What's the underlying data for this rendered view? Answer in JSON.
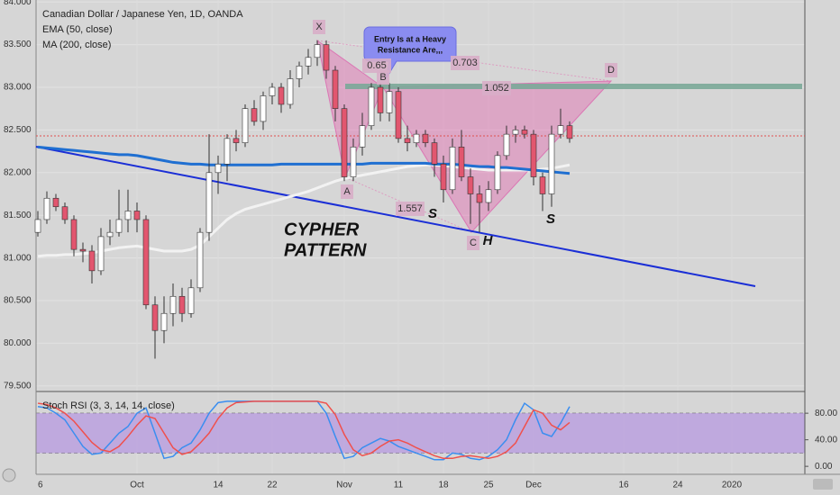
{
  "chart_data": [
    {
      "type": "candlestick",
      "title": "Canadian Dollar / Japanese Yen, 1D, OANDA",
      "categories": [
        "6",
        null,
        null,
        null,
        null,
        null,
        null,
        null,
        null,
        null,
        null,
        "Oct",
        null,
        null,
        null,
        null,
        null,
        null,
        null,
        null,
        "14",
        null,
        null,
        null,
        null,
        null,
        "22",
        null,
        null,
        null,
        null,
        null,
        null,
        null,
        "Nov",
        null,
        null,
        null,
        null,
        null,
        "11",
        null,
        null,
        null,
        null,
        "18",
        null,
        null,
        null,
        null,
        "25",
        null,
        null,
        null,
        null,
        "Dec",
        null,
        null,
        null,
        null,
        null,
        null,
        null,
        null,
        null,
        "16",
        null,
        null,
        null,
        null,
        null,
        "24",
        null,
        null,
        null,
        null,
        null,
        "2020"
      ],
      "open": [
        81.3,
        81.45,
        81.7,
        81.6,
        81.45,
        81.1,
        81.08,
        80.85,
        81.25,
        81.3,
        81.45,
        81.55,
        81.45,
        80.45,
        80.15,
        80.35,
        80.55,
        80.35,
        80.65,
        81.3,
        82.0,
        82.1,
        82.4,
        82.35,
        82.75,
        82.6,
        82.9,
        83.0,
        82.8,
        83.1,
        83.25,
        83.35,
        83.5,
        83.2,
        82.75,
        81.95,
        82.3,
        82.55,
        83.0,
        82.7,
        82.95,
        82.4,
        82.35,
        82.45,
        82.35,
        82.1,
        81.8,
        82.3,
        81.95,
        81.75,
        81.65,
        81.8,
        82.2,
        82.45,
        82.5,
        82.45,
        81.95,
        81.75,
        82.45,
        82.55,
        null,
        null,
        null,
        null,
        null,
        null,
        null,
        null,
        null,
        null,
        null,
        null,
        null,
        null,
        null,
        null,
        null,
        null
      ],
      "high": [
        81.55,
        81.78,
        81.75,
        81.65,
        81.5,
        81.18,
        81.15,
        81.35,
        81.45,
        81.8,
        81.8,
        81.65,
        81.5,
        80.55,
        80.55,
        80.7,
        80.65,
        80.75,
        81.35,
        82.45,
        82.2,
        82.45,
        82.5,
        82.8,
        82.85,
        82.95,
        83.05,
        83.05,
        83.2,
        83.3,
        83.45,
        83.55,
        83.55,
        83.25,
        82.8,
        82.4,
        82.7,
        83.05,
        83.05,
        83.05,
        83.0,
        82.55,
        82.5,
        82.5,
        82.4,
        82.2,
        82.4,
        82.5,
        82.05,
        81.85,
        81.9,
        82.25,
        82.55,
        82.55,
        82.55,
        82.5,
        82.0,
        82.55,
        82.75,
        82.6,
        null,
        null,
        null,
        null,
        null,
        null,
        null,
        null,
        null,
        null,
        null,
        null,
        null,
        null,
        null,
        null,
        null,
        null
      ],
      "low": [
        81.25,
        81.4,
        81.55,
        81.4,
        81.02,
        80.95,
        80.7,
        80.8,
        81.15,
        81.25,
        81.3,
        81.3,
        80.4,
        79.82,
        80.0,
        80.2,
        80.25,
        80.3,
        80.6,
        81.2,
        81.75,
        81.9,
        82.25,
        82.3,
        82.55,
        82.5,
        82.8,
        82.7,
        82.75,
        83.0,
        83.15,
        83.25,
        83.1,
        82.6,
        81.9,
        81.9,
        82.2,
        82.5,
        82.6,
        82.6,
        82.35,
        82.25,
        82.3,
        82.3,
        81.95,
        81.65,
        81.75,
        81.9,
        81.4,
        81.3,
        81.55,
        81.75,
        82.15,
        82.35,
        82.4,
        81.85,
        81.55,
        81.6,
        82.4,
        82.35,
        null,
        null,
        null,
        null,
        null,
        null,
        null,
        null,
        null,
        null,
        null,
        null,
        null,
        null,
        null,
        null,
        null,
        null
      ],
      "close": [
        81.45,
        81.7,
        81.6,
        81.45,
        81.1,
        81.08,
        80.85,
        81.25,
        81.3,
        81.45,
        81.55,
        81.45,
        80.45,
        80.15,
        80.35,
        80.55,
        80.35,
        80.65,
        81.3,
        82.0,
        82.1,
        82.4,
        82.35,
        82.75,
        82.6,
        82.9,
        83.0,
        82.8,
        83.1,
        83.25,
        83.35,
        83.5,
        83.2,
        82.75,
        81.95,
        82.3,
        82.55,
        83.0,
        82.7,
        82.95,
        82.4,
        82.35,
        82.45,
        82.35,
        82.1,
        81.8,
        82.3,
        81.95,
        81.75,
        81.65,
        81.8,
        82.2,
        82.45,
        82.5,
        82.45,
        81.95,
        81.75,
        82.45,
        82.55,
        82.4,
        null,
        null,
        null,
        null,
        null,
        null,
        null,
        null,
        null,
        null,
        null,
        null,
        null,
        null,
        null,
        null,
        null,
        null
      ],
      "up_color": "#ffffff",
      "down_color": "#e2566f",
      "series": [
        {
          "name": "EMA (50, close)",
          "color": "#f2f2f2",
          "values": [
            81.02,
            81.03,
            81.03,
            81.04,
            81.04,
            81.05,
            81.06,
            81.08,
            81.1,
            81.12,
            81.13,
            81.14,
            81.12,
            81.1,
            81.08,
            81.08,
            81.08,
            81.1,
            81.15,
            81.25,
            81.35,
            81.45,
            81.52,
            81.57,
            81.6,
            81.63,
            81.66,
            81.69,
            81.72,
            81.75,
            81.78,
            81.82,
            81.86,
            81.9,
            81.93,
            81.95,
            81.97,
            81.99,
            82.01,
            82.03,
            82.05,
            82.07,
            82.08,
            82.09,
            82.09,
            82.08,
            82.07,
            82.06,
            82.05,
            82.04,
            82.03,
            82.03,
            82.03,
            82.03,
            82.03,
            82.03,
            82.04,
            82.05,
            82.07,
            82.09,
            null,
            null,
            null,
            null,
            null,
            null,
            null,
            null,
            null,
            null,
            null,
            null,
            null,
            null,
            null,
            null,
            null,
            null
          ]
        },
        {
          "name": "MA (200, close)",
          "color": "#1f6fd1",
          "values": [
            82.3,
            82.29,
            82.28,
            82.27,
            82.26,
            82.25,
            82.24,
            82.23,
            82.22,
            82.21,
            82.21,
            82.2,
            82.18,
            82.16,
            82.14,
            82.12,
            82.11,
            82.1,
            82.1,
            82.09,
            82.09,
            82.09,
            82.09,
            82.09,
            82.09,
            82.09,
            82.09,
            82.1,
            82.1,
            82.1,
            82.1,
            82.1,
            82.1,
            82.1,
            82.1,
            82.1,
            82.1,
            82.11,
            82.11,
            82.11,
            82.11,
            82.11,
            82.11,
            82.11,
            82.1,
            82.1,
            82.1,
            82.09,
            82.08,
            82.07,
            82.07,
            82.06,
            82.06,
            82.05,
            82.04,
            82.03,
            82.02,
            82.01,
            82.0,
            81.99,
            null,
            null,
            null,
            null,
            null,
            null,
            null,
            null,
            null,
            null,
            null,
            null,
            null,
            null,
            null,
            null,
            null,
            null
          ]
        }
      ],
      "ylim": [
        79.435,
        84.023
      ],
      "yticks": [
        {
          "value": 84,
          "label": "84.000"
        },
        {
          "value": 83.5,
          "label": "83.500"
        },
        {
          "value": 83,
          "label": "83.000"
        },
        {
          "value": 82.5,
          "label": "82.500"
        },
        {
          "value": 82,
          "label": "82.000"
        },
        {
          "value": 81.5,
          "label": "81.500"
        },
        {
          "value": 81,
          "label": "81.000"
        },
        {
          "value": 80.5,
          "label": "80.500"
        },
        {
          "value": 80,
          "label": "80.000"
        },
        {
          "value": 79.5,
          "label": "79.500"
        }
      ],
      "grid": true,
      "annotations": {
        "pattern_points": [
          "X",
          "A",
          "B",
          "C",
          "D"
        ],
        "ratios": [
          "0.65",
          "0.703",
          "1.052",
          "1.557"
        ],
        "shoulders": [
          "S",
          "H",
          "S"
        ],
        "pattern_name": [
          "CYPHER",
          "PATTERN"
        ],
        "callout": [
          "Entry Is at a Heavy",
          "Resistance Are,,,"
        ]
      }
    },
    {
      "type": "line",
      "title": "Stoch RSI (3, 3, 14, 14, close)",
      "series": [
        {
          "color": "#3a8ef0",
          "values": [
            90,
            88,
            80,
            70,
            50,
            30,
            18,
            20,
            35,
            50,
            60,
            80,
            88,
            50,
            12,
            15,
            28,
            35,
            55,
            80,
            96,
            98,
            98,
            98,
            98,
            98,
            98,
            98,
            98,
            98,
            98,
            98,
            80,
            45,
            12,
            15,
            28,
            35,
            42,
            38,
            30,
            25,
            20,
            15,
            10,
            10,
            20,
            18,
            12,
            10,
            15,
            25,
            40,
            70,
            95,
            85,
            50,
            45,
            65,
            90,
            null,
            null,
            null,
            null,
            null,
            null,
            null,
            null,
            null,
            null,
            null,
            null,
            null,
            null,
            null,
            null,
            null,
            null
          ]
        },
        {
          "color": "#f0504c",
          "values": [
            95,
            93,
            88,
            80,
            68,
            52,
            36,
            25,
            22,
            30,
            45,
            62,
            76,
            72,
            50,
            28,
            18,
            22,
            35,
            50,
            72,
            88,
            96,
            97,
            98,
            98,
            98,
            98,
            98,
            98,
            98,
            98,
            95,
            78,
            48,
            25,
            16,
            20,
            30,
            38,
            40,
            35,
            28,
            22,
            16,
            12,
            12,
            15,
            16,
            14,
            12,
            15,
            22,
            35,
            60,
            85,
            80,
            62,
            55,
            66,
            null,
            null,
            null,
            null,
            null,
            null,
            null,
            null,
            null,
            null,
            null,
            null,
            null,
            null,
            null,
            null,
            null,
            null
          ]
        }
      ],
      "ylim": [
        -12,
        110
      ],
      "yticks": [
        {
          "value": 80,
          "label": "80.00"
        },
        {
          "value": 40,
          "label": "40.00"
        },
        {
          "value": 0,
          "label": "0.00"
        }
      ],
      "band": [
        20,
        80
      ],
      "band_color": "#b99ee0"
    }
  ]
}
